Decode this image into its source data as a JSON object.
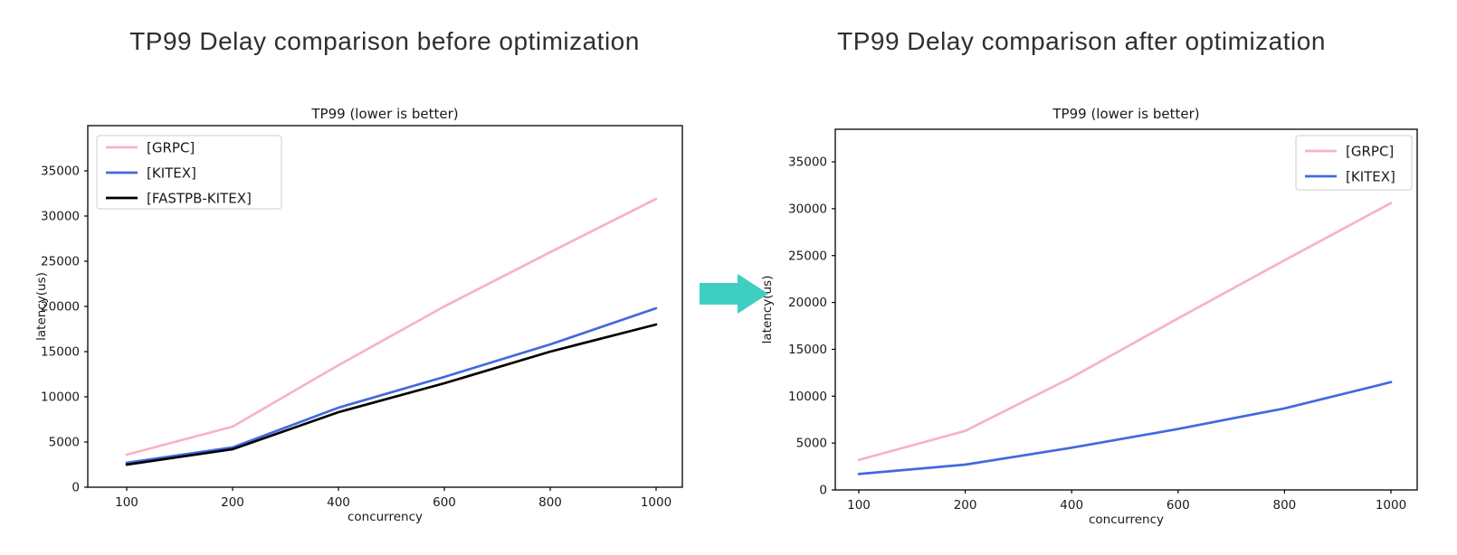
{
  "headings": {
    "left": "TP99 Delay comparison before optimization",
    "right": "TP99 Delay comparison after optimization"
  },
  "arrow": {
    "color": "#3ecfc2",
    "direction": "right"
  },
  "colors": {
    "grpc_pink": "#f7b3c2",
    "kitex_blue": "#4169e1",
    "fastpb_black": "#000000",
    "chart_text": "#1a1a1a",
    "legend_border": "#cccccc"
  },
  "chart_data": [
    {
      "type": "line",
      "heading": "TP99 Delay comparison before optimization",
      "title": "TP99 (lower is better)",
      "xlabel": "concurrency",
      "ylabel": "latency(us)",
      "categories": [
        "100",
        "200",
        "400",
        "600",
        "800",
        "1000"
      ],
      "x_spacing": "even-categorical",
      "yticks": [
        0,
        5000,
        10000,
        15000,
        20000,
        25000,
        30000,
        35000
      ],
      "ylim": [
        0,
        40000
      ],
      "grid": false,
      "legend_position": "top-left",
      "series": [
        {
          "name": "[GRPC]",
          "color": "#f7b3c2",
          "values": [
            3600,
            6700,
            13500,
            20000,
            26000,
            31900
          ]
        },
        {
          "name": "[KITEX]",
          "color": "#4169e1",
          "values": [
            2700,
            4400,
            8800,
            12200,
            15800,
            19800
          ]
        },
        {
          "name": "[FASTPB-KITEX]",
          "color": "#000000",
          "values": [
            2500,
            4200,
            8300,
            11500,
            15000,
            18000
          ]
        }
      ]
    },
    {
      "type": "line",
      "heading": "TP99 Delay comparison after optimization",
      "title": "TP99 (lower is better)",
      "xlabel": "concurrency",
      "ylabel": "latency(us)",
      "categories": [
        "100",
        "200",
        "400",
        "600",
        "800",
        "1000"
      ],
      "x_spacing": "even-categorical",
      "yticks": [
        0,
        5000,
        10000,
        15000,
        20000,
        25000,
        30000,
        35000
      ],
      "ylim": [
        0,
        38500
      ],
      "grid": false,
      "legend_position": "top-right",
      "series": [
        {
          "name": "[GRPC]",
          "color": "#f7b3c2",
          "values": [
            3200,
            6300,
            12000,
            18300,
            24500,
            30600
          ]
        },
        {
          "name": "[KITEX]",
          "color": "#4169e1",
          "values": [
            1700,
            2700,
            4500,
            6500,
            8700,
            11500
          ]
        }
      ]
    }
  ]
}
